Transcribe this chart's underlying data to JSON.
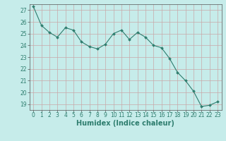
{
  "x": [
    0,
    1,
    2,
    3,
    4,
    5,
    6,
    7,
    8,
    9,
    10,
    11,
    12,
    13,
    14,
    15,
    16,
    17,
    18,
    19,
    20,
    21,
    22,
    23
  ],
  "y": [
    27.3,
    25.7,
    25.1,
    24.7,
    25.5,
    25.3,
    24.3,
    23.9,
    23.7,
    24.1,
    25.0,
    25.3,
    24.5,
    25.1,
    24.7,
    24.0,
    23.8,
    22.9,
    21.7,
    21.0,
    20.1,
    18.8,
    18.9,
    19.2
  ],
  "line_color": "#2e7d6e",
  "marker": "D",
  "marker_size": 2.0,
  "bg_color": "#c6ecea",
  "grid_color": "#c8a8a8",
  "xlabel": "Humidex (Indice chaleur)",
  "xlim": [
    -0.5,
    23.5
  ],
  "ylim": [
    18.5,
    27.5
  ],
  "yticks": [
    19,
    20,
    21,
    22,
    23,
    24,
    25,
    26,
    27
  ],
  "xticks": [
    0,
    1,
    2,
    3,
    4,
    5,
    6,
    7,
    8,
    9,
    10,
    11,
    12,
    13,
    14,
    15,
    16,
    17,
    18,
    19,
    20,
    21,
    22,
    23
  ],
  "tick_fontsize": 5.5,
  "label_fontsize": 7.0,
  "tick_color": "#2e7d6e",
  "label_color": "#2e7d6e"
}
